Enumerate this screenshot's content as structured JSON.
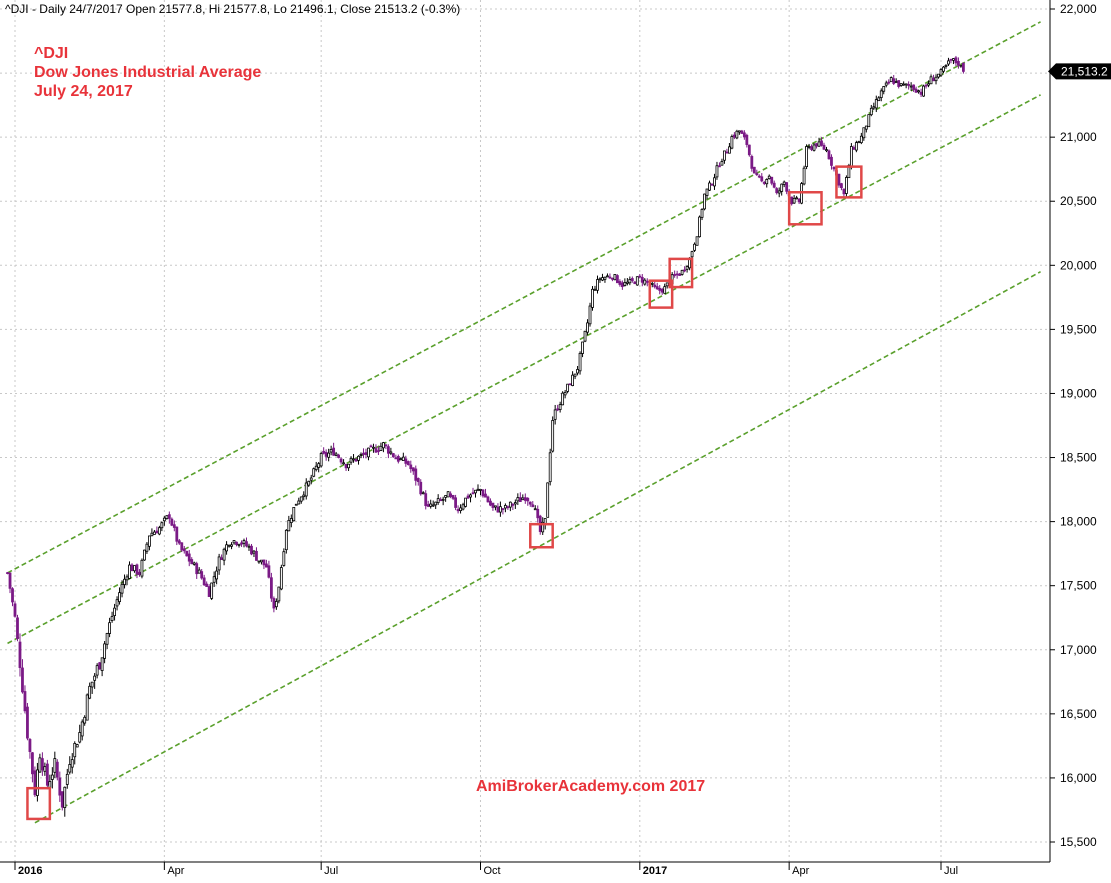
{
  "header": {
    "text": "^DJI - Daily 24/7/2017 Open 21577.8, Hi 21577.8, Lo 21496.1, Close 21513.2 (-0.3%)"
  },
  "title": {
    "line1": "^DJI",
    "line2": "Dow Jones Industrial Average",
    "line3": "July 24, 2017",
    "color": "#e8333a"
  },
  "watermark": {
    "text": "AmiBrokerAcademy.com  2017",
    "color": "#e8333a"
  },
  "last_price": {
    "label": "21,513.2",
    "value": 21513.2
  },
  "colors": {
    "up_candle": "#000000",
    "down_candle": "#7b1a86",
    "channel": "#5aa02c",
    "highlight_box": "#e04848",
    "grid": "#c8c8c8",
    "price_label_bg": "#000000"
  },
  "chart_data": {
    "type": "candlestick",
    "symbol": "^DJI",
    "ylim": [
      15400,
      22000
    ],
    "yticks": [
      {
        "value": 22000,
        "label": "22,000"
      },
      {
        "value": 21500,
        "label": "21,500"
      },
      {
        "value": 21000,
        "label": "21,000"
      },
      {
        "value": 20500,
        "label": "20,500"
      },
      {
        "value": 20000,
        "label": "20,000"
      },
      {
        "value": 19500,
        "label": "19,500"
      },
      {
        "value": 19000,
        "label": "19,000"
      },
      {
        "value": 18500,
        "label": "18,500"
      },
      {
        "value": 18000,
        "label": "18,000"
      },
      {
        "value": 17500,
        "label": "17,500"
      },
      {
        "value": 17000,
        "label": "17,000"
      },
      {
        "value": 16500,
        "label": "16,500"
      },
      {
        "value": 16000,
        "label": "16,000"
      },
      {
        "value": 15500,
        "label": "15,500"
      }
    ],
    "xticks": [
      {
        "day": 0,
        "label": "2016",
        "bold": true
      },
      {
        "day": 60,
        "label": "Apr",
        "bold": false
      },
      {
        "day": 123,
        "label": "Jul",
        "bold": false
      },
      {
        "day": 187,
        "label": "Oct",
        "bold": false
      },
      {
        "day": 251,
        "label": "2017",
        "bold": true
      },
      {
        "day": 311,
        "label": "Apr",
        "bold": false
      },
      {
        "day": 372,
        "label": "Jul",
        "bold": false
      }
    ],
    "day_range": [
      -5,
      410
    ],
    "anchors": [
      [
        -3,
        17600
      ],
      [
        0,
        17250
      ],
      [
        2,
        16900
      ],
      [
        5,
        16350
      ],
      [
        8,
        15900
      ],
      [
        10,
        16200
      ],
      [
        13,
        15950
      ],
      [
        16,
        16100
      ],
      [
        19,
        15800
      ],
      [
        22,
        16150
      ],
      [
        26,
        16350
      ],
      [
        30,
        16700
      ],
      [
        34,
        16900
      ],
      [
        38,
        17200
      ],
      [
        42,
        17450
      ],
      [
        46,
        17650
      ],
      [
        50,
        17600
      ],
      [
        54,
        17900
      ],
      [
        58,
        17950
      ],
      [
        62,
        18050
      ],
      [
        66,
        17800
      ],
      [
        70,
        17700
      ],
      [
        74,
        17600
      ],
      [
        78,
        17450
      ],
      [
        82,
        17700
      ],
      [
        86,
        17850
      ],
      [
        90,
        17850
      ],
      [
        94,
        17800
      ],
      [
        98,
        17700
      ],
      [
        101,
        17650
      ],
      [
        104,
        17300
      ],
      [
        106,
        17500
      ],
      [
        109,
        17950
      ],
      [
        113,
        18150
      ],
      [
        118,
        18300
      ],
      [
        123,
        18500
      ],
      [
        128,
        18550
      ],
      [
        133,
        18450
      ],
      [
        138,
        18500
      ],
      [
        143,
        18550
      ],
      [
        148,
        18600
      ],
      [
        153,
        18500
      ],
      [
        158,
        18450
      ],
      [
        162,
        18300
      ],
      [
        166,
        18100
      ],
      [
        170,
        18150
      ],
      [
        174,
        18200
      ],
      [
        178,
        18100
      ],
      [
        182,
        18200
      ],
      [
        187,
        18250
      ],
      [
        192,
        18100
      ],
      [
        197,
        18100
      ],
      [
        201,
        18150
      ],
      [
        205,
        18200
      ],
      [
        208,
        18150
      ],
      [
        211,
        17920
      ],
      [
        213,
        18000
      ],
      [
        214,
        18320
      ],
      [
        216,
        18800
      ],
      [
        218,
        18900
      ],
      [
        222,
        19050
      ],
      [
        226,
        19200
      ],
      [
        230,
        19550
      ],
      [
        232,
        19800
      ],
      [
        235,
        19900
      ],
      [
        240,
        19920
      ],
      [
        244,
        19850
      ],
      [
        248,
        19870
      ],
      [
        251,
        19900
      ],
      [
        255,
        19850
      ],
      [
        258,
        19800
      ],
      [
        261,
        19820
      ],
      [
        264,
        19900
      ],
      [
        268,
        19950
      ],
      [
        271,
        20050
      ],
      [
        274,
        20250
      ],
      [
        277,
        20550
      ],
      [
        280,
        20650
      ],
      [
        283,
        20800
      ],
      [
        286,
        20900
      ],
      [
        288,
        21000
      ],
      [
        291,
        21050
      ],
      [
        294,
        20950
      ],
      [
        297,
        20700
      ],
      [
        300,
        20650
      ],
      [
        303,
        20700
      ],
      [
        306,
        20550
      ],
      [
        309,
        20650
      ],
      [
        312,
        20500
      ],
      [
        315,
        20500
      ],
      [
        318,
        20900
      ],
      [
        322,
        20950
      ],
      [
        326,
        20900
      ],
      [
        330,
        20700
      ],
      [
        333,
        20550
      ],
      [
        336,
        20900
      ],
      [
        340,
        21000
      ],
      [
        344,
        21200
      ],
      [
        348,
        21350
      ],
      [
        352,
        21450
      ],
      [
        356,
        21400
      ],
      [
        360,
        21400
      ],
      [
        364,
        21350
      ],
      [
        368,
        21450
      ],
      [
        372,
        21500
      ],
      [
        376,
        21600
      ],
      [
        379,
        21580
      ],
      [
        381,
        21513
      ]
    ],
    "last_candle": {
      "open": 21577.8,
      "high": 21577.8,
      "low": 21496.1,
      "close": 21513.2
    },
    "channel_lines": [
      {
        "name": "upper-channel",
        "start": [
          -3,
          17600
        ],
        "end": [
          412,
          21900
        ]
      },
      {
        "name": "middle-channel",
        "start": [
          -3,
          17050
        ],
        "end": [
          412,
          21330
        ]
      },
      {
        "name": "lower-channel",
        "start": [
          8,
          15650
        ],
        "end": [
          412,
          19950
        ]
      }
    ],
    "highlight_boxes": [
      {
        "day0": 5,
        "day1": 14,
        "low": 15680,
        "high": 15920
      },
      {
        "day0": 207,
        "day1": 216,
        "low": 17800,
        "high": 17980
      },
      {
        "day0": 255,
        "day1": 264,
        "low": 19670,
        "high": 19880
      },
      {
        "day0": 263,
        "day1": 272,
        "low": 19830,
        "high": 20050
      },
      {
        "day0": 311,
        "day1": 324,
        "low": 20320,
        "high": 20570
      },
      {
        "day0": 330,
        "day1": 340,
        "low": 20530,
        "high": 20770
      }
    ]
  }
}
